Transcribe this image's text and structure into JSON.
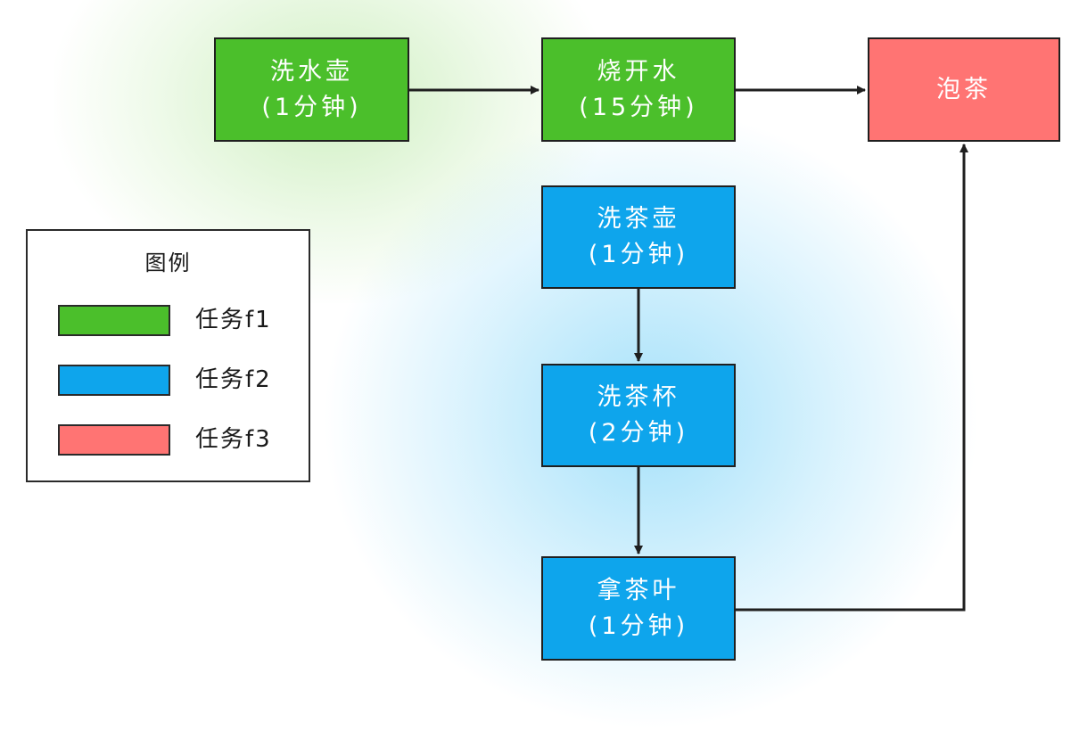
{
  "nodes": {
    "wash_kettle": {
      "title": "洗水壶",
      "duration": "(1分钟)"
    },
    "boil_water": {
      "title": "烧开水",
      "duration": "(15分钟)"
    },
    "brew_tea": {
      "title": "泡茶"
    },
    "wash_teapot": {
      "title": "洗茶壶",
      "duration": "(1分钟)"
    },
    "wash_cups": {
      "title": "洗茶杯",
      "duration": "(2分钟)"
    },
    "get_leaves": {
      "title": "拿茶叶",
      "duration": "(1分钟)"
    }
  },
  "legend": {
    "title": "图例",
    "items": [
      {
        "label": "任务f1",
        "color": "#4bbf2b"
      },
      {
        "label": "任务f2",
        "color": "#0ea5ec"
      },
      {
        "label": "任务f3",
        "color": "#ff7473"
      }
    ]
  },
  "colors": {
    "task_f1": "#4bbf2b",
    "task_f2": "#0ea5ec",
    "task_f3": "#ff7473",
    "edge": "#1f1f1f"
  }
}
